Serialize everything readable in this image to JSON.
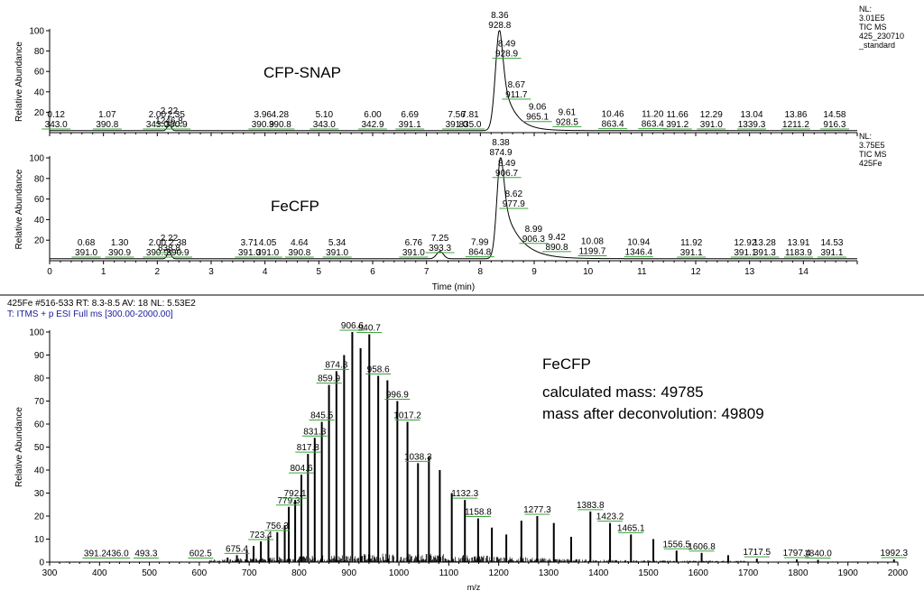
{
  "header": {
    "line1": "425Fe #516-533  RT: 8.3-8.5  AV: 18  NL: 5.53E2",
    "line2": "T: ITMS + p ESI Full ms [300.00-2000.00]"
  },
  "chart_data": [
    {
      "type": "line",
      "annotation": "CFP-SNAP",
      "ylabel": "Relative Abundance",
      "xlim": [
        0,
        15
      ],
      "ylim": [
        0,
        100
      ],
      "yticks": [
        "20",
        "40",
        "60",
        "80",
        "100"
      ],
      "nl_text": [
        "NL:",
        "3.01E5",
        "TIC  MS",
        "425_230710",
        "_standard"
      ],
      "peak": {
        "rt": 8.36,
        "height": 100,
        "rise": 0.11,
        "decay": 0.22
      },
      "minor_peaks": [
        {
          "rt": 2.22,
          "height": 6,
          "width": 0.05
        }
      ],
      "baseline": 2,
      "labels": [
        {
          "rt": "0.12",
          "mz": "343.0",
          "x": 0.12,
          "y": 2
        },
        {
          "rt": "1.07",
          "mz": "390.8",
          "x": 1.07,
          "y": 2
        },
        {
          "rt": "2.00",
          "mz": "343.0",
          "x": 2.0,
          "y": 2
        },
        {
          "rt": "2.22",
          "mz": "1246.8",
          "x": 2.22,
          "y": 6
        },
        {
          "rt": "2.35",
          "mz": "390.9",
          "x": 2.35,
          "y": 2
        },
        {
          "rt": "3.96",
          "mz": "390.9",
          "x": 3.96,
          "y": 2
        },
        {
          "rt": "4.28",
          "mz": "390.8",
          "x": 4.28,
          "y": 2
        },
        {
          "rt": "5.10",
          "mz": "343.0",
          "x": 5.1,
          "y": 2
        },
        {
          "rt": "6.00",
          "mz": "342.9",
          "x": 6.0,
          "y": 2
        },
        {
          "rt": "6.69",
          "mz": "391.1",
          "x": 6.69,
          "y": 2
        },
        {
          "rt": "7.56",
          "mz": "391.0",
          "x": 7.56,
          "y": 2
        },
        {
          "rt": "7.81",
          "mz": "835.0",
          "x": 7.81,
          "y": 2
        },
        {
          "rt": "8.36",
          "mz": "928.8",
          "x": 8.36,
          "y": 100
        },
        {
          "rt": "8.49",
          "mz": "928.9",
          "x": 8.49,
          "y": 72
        },
        {
          "rt": "8.67",
          "mz": "911.7",
          "x": 8.67,
          "y": 32
        },
        {
          "rt": "9.06",
          "mz": "965.1",
          "x": 9.06,
          "y": 10
        },
        {
          "rt": "9.61",
          "mz": "928.5",
          "x": 9.61,
          "y": 5
        },
        {
          "rt": "10.46",
          "mz": "863.4",
          "x": 10.46,
          "y": 3
        },
        {
          "rt": "11.20",
          "mz": "863.4",
          "x": 11.2,
          "y": 3
        },
        {
          "rt": "11.66",
          "mz": "391.2",
          "x": 11.66,
          "y": 2
        },
        {
          "rt": "12.29",
          "mz": "391.0",
          "x": 12.29,
          "y": 2
        },
        {
          "rt": "13.04",
          "mz": "1339.3",
          "x": 13.04,
          "y": 2
        },
        {
          "rt": "13.86",
          "mz": "1211.2",
          "x": 13.86,
          "y": 2
        },
        {
          "rt": "14.58",
          "mz": "916.3",
          "x": 14.58,
          "y": 2
        }
      ]
    },
    {
      "type": "line",
      "annotation": "FeCFP",
      "ylabel": "Relative Abundance",
      "xlabel": "Time (min)",
      "xlim": [
        0,
        15
      ],
      "ylim": [
        0,
        100
      ],
      "yticks": [
        "20",
        "40",
        "60",
        "80",
        "100"
      ],
      "xticks": [
        "0",
        "1",
        "2",
        "3",
        "4",
        "5",
        "6",
        "7",
        "8",
        "9",
        "10",
        "11",
        "12",
        "13",
        "14"
      ],
      "nl_text": [
        "NL:",
        "3.75E5",
        "TIC  MS",
        "425Fe"
      ],
      "peak": {
        "rt": 8.38,
        "height": 100,
        "rise": 0.1,
        "decay": 0.3
      },
      "minor_peaks": [
        {
          "rt": 2.22,
          "height": 7,
          "width": 0.05
        },
        {
          "rt": 7.25,
          "height": 7,
          "width": 0.09
        }
      ],
      "baseline": 2,
      "labels": [
        {
          "rt": "0.68",
          "mz": "391.0",
          "x": 0.68,
          "y": 2
        },
        {
          "rt": "1.30",
          "mz": "390.9",
          "x": 1.3,
          "y": 2
        },
        {
          "rt": "2.00",
          "mz": "390.9",
          "x": 2.0,
          "y": 2
        },
        {
          "rt": "2.22",
          "mz": "838.8",
          "x": 2.22,
          "y": 7
        },
        {
          "rt": "2.38",
          "mz": "390.9",
          "x": 2.38,
          "y": 2
        },
        {
          "rt": "3.71",
          "mz": "391.0",
          "x": 3.71,
          "y": 2
        },
        {
          "rt": "4.05",
          "mz": "391.0",
          "x": 4.05,
          "y": 2
        },
        {
          "rt": "4.64",
          "mz": "390.8",
          "x": 4.64,
          "y": 2
        },
        {
          "rt": "5.34",
          "mz": "391.0",
          "x": 5.34,
          "y": 2
        },
        {
          "rt": "6.76",
          "mz": "391.0",
          "x": 6.76,
          "y": 2
        },
        {
          "rt": "7.25",
          "mz": "393.3",
          "x": 7.25,
          "y": 7
        },
        {
          "rt": "7.99",
          "mz": "864.8",
          "x": 7.99,
          "y": 3
        },
        {
          "rt": "8.38",
          "mz": "874.9",
          "x": 8.38,
          "y": 100
        },
        {
          "rt": "8.49",
          "mz": "906.7",
          "x": 8.49,
          "y": 80
        },
        {
          "rt": "8.62",
          "mz": "977.9",
          "x": 8.62,
          "y": 50
        },
        {
          "rt": "8.99",
          "mz": "906.3",
          "x": 8.99,
          "y": 16
        },
        {
          "rt": "9.42",
          "mz": "890.8",
          "x": 9.42,
          "y": 8
        },
        {
          "rt": "10.08",
          "mz": "1199.7",
          "x": 10.08,
          "y": 4
        },
        {
          "rt": "10.94",
          "mz": "1346.4",
          "x": 10.94,
          "y": 3
        },
        {
          "rt": "11.92",
          "mz": "391.1",
          "x": 11.92,
          "y": 2
        },
        {
          "rt": "12.92",
          "mz": "391.1",
          "x": 12.92,
          "y": 2
        },
        {
          "rt": "13.28",
          "mz": "391.3",
          "x": 13.28,
          "y": 2
        },
        {
          "rt": "13.91",
          "mz": "1183.9",
          "x": 13.91,
          "y": 2
        },
        {
          "rt": "14.53",
          "mz": "391.1",
          "x": 14.53,
          "y": 2
        }
      ]
    },
    {
      "type": "bar",
      "ylabel": "Relative Abundance",
      "xlabel": "m/z",
      "xlim": [
        300,
        2000
      ],
      "ylim": [
        0,
        100
      ],
      "yticks": [
        "0",
        "10",
        "20",
        "30",
        "40",
        "50",
        "60",
        "70",
        "80",
        "90",
        "100"
      ],
      "xticks": [
        "300",
        "400",
        "500",
        "600",
        "700",
        "800",
        "900",
        "1000",
        "1100",
        "1200",
        "1300",
        "1400",
        "1500",
        "1600",
        "1700",
        "1800",
        "1900",
        "2000"
      ],
      "annotations": [
        "FeCFP",
        "calculated mass: 49785",
        "mass after deconvolution: 49809"
      ],
      "peaks": [
        [
          656.7,
          2
        ],
        [
          675.4,
          3
        ],
        [
          695.3,
          5
        ],
        [
          708.8,
          7
        ],
        [
          723.4,
          9
        ],
        [
          738.5,
          11
        ],
        [
          756.3,
          13
        ],
        [
          771.2,
          16
        ],
        [
          779.3,
          24
        ],
        [
          792.1,
          27
        ],
        [
          804.6,
          38
        ],
        [
          817.8,
          47
        ],
        [
          831.3,
          54
        ],
        [
          845.5,
          61
        ],
        [
          859.9,
          77
        ],
        [
          874.8,
          83
        ],
        [
          890.2,
          90
        ],
        [
          906.6,
          100
        ],
        [
          923.2,
          93
        ],
        [
          940.7,
          99
        ],
        [
          958.6,
          81
        ],
        [
          977.0,
          79
        ],
        [
          996.9,
          70
        ],
        [
          1017.2,
          61
        ],
        [
          1038.3,
          43
        ],
        [
          1060.2,
          46
        ],
        [
          1082.0,
          40
        ],
        [
          1106.0,
          30
        ],
        [
          1132.3,
          27
        ],
        [
          1158.8,
          19
        ],
        [
          1186.4,
          15
        ],
        [
          1215.3,
          12
        ],
        [
          1245.5,
          18
        ],
        [
          1277.3,
          20
        ],
        [
          1310.5,
          17
        ],
        [
          1345.3,
          11
        ],
        [
          1383.8,
          22
        ],
        [
          1423.2,
          17
        ],
        [
          1465.1,
          12
        ],
        [
          1510.0,
          10
        ],
        [
          1556.5,
          5
        ],
        [
          1606.8,
          4
        ],
        [
          1660.0,
          3
        ],
        [
          1717.5,
          1.5
        ],
        [
          1797.4,
          1.2
        ],
        [
          1840.0,
          1.0
        ],
        [
          1992.3,
          1.2
        ]
      ],
      "labels": [
        {
          "text": "391.2",
          "x": 391.2,
          "y": 1
        },
        {
          "text": "436.0",
          "x": 436.0,
          "y": 1
        },
        {
          "text": "493.3",
          "x": 493.3,
          "y": 1
        },
        {
          "text": "602.5",
          "x": 602.5,
          "y": 1
        },
        {
          "text": "675.4",
          "x": 675.4,
          "y": 3
        },
        {
          "text": "723.4",
          "x": 723.4,
          "y": 9
        },
        {
          "text": "756.3",
          "x": 756.3,
          "y": 13
        },
        {
          "text": "779.3",
          "x": 779.3,
          "y": 24
        },
        {
          "text": "792.1",
          "x": 792.1,
          "y": 27
        },
        {
          "text": "804.6",
          "x": 804.6,
          "y": 38
        },
        {
          "text": "817.8",
          "x": 817.8,
          "y": 47
        },
        {
          "text": "831.3",
          "x": 831.3,
          "y": 54
        },
        {
          "text": "845.5",
          "x": 845.5,
          "y": 61
        },
        {
          "text": "859.9",
          "x": 859.9,
          "y": 77
        },
        {
          "text": "874.8",
          "x": 874.8,
          "y": 83
        },
        {
          "text": "906.6",
          "x": 906.6,
          "y": 100
        },
        {
          "text": "940.7",
          "x": 940.7,
          "y": 99
        },
        {
          "text": "958.6",
          "x": 958.6,
          "y": 81
        },
        {
          "text": "996.9",
          "x": 996.9,
          "y": 70
        },
        {
          "text": "1017.2",
          "x": 1017.2,
          "y": 61
        },
        {
          "text": "1038.3",
          "x": 1038.3,
          "y": 43
        },
        {
          "text": "1132.3",
          "x": 1132.3,
          "y": 27
        },
        {
          "text": "1158.8",
          "x": 1158.8,
          "y": 19
        },
        {
          "text": "1277.3",
          "x": 1277.3,
          "y": 20
        },
        {
          "text": "1383.8",
          "x": 1383.8,
          "y": 22
        },
        {
          "text": "1423.2",
          "x": 1423.2,
          "y": 17
        },
        {
          "text": "1465.1",
          "x": 1465.1,
          "y": 12
        },
        {
          "text": "1556.5",
          "x": 1556.5,
          "y": 5
        },
        {
          "text": "1606.8",
          "x": 1606.8,
          "y": 4
        },
        {
          "text": "1717.5",
          "x": 1717.5,
          "y": 1.5
        },
        {
          "text": "1797.4",
          "x": 1797.4,
          "y": 1.2
        },
        {
          "text": "1840.0",
          "x": 1840.0,
          "y": 1.0
        },
        {
          "text": "1992.3",
          "x": 1992.3,
          "y": 1.2
        }
      ]
    }
  ]
}
